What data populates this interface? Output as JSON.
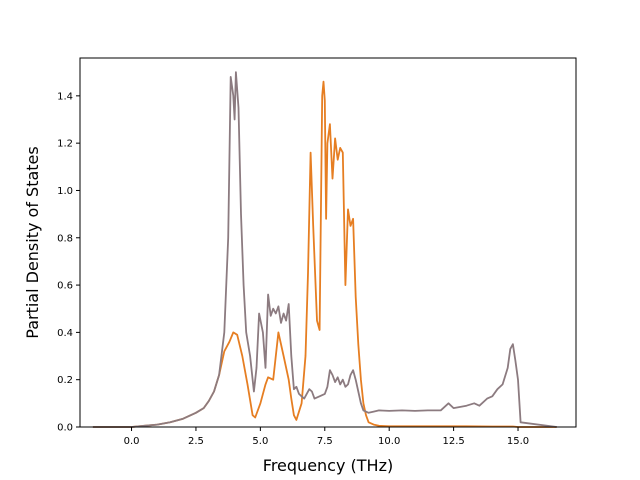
{
  "chart_data": {
    "type": "line",
    "title": "",
    "xlabel": "Frequency (THz)",
    "ylabel": "Partial Density of States",
    "xlim": [
      -2.0,
      17.25
    ],
    "ylim": [
      0.0,
      1.56
    ],
    "xticks": [
      0.0,
      2.5,
      5.0,
      7.5,
      10.0,
      12.5,
      15.0
    ],
    "xtick_labels": [
      "0.0",
      "2.5",
      "5.0",
      "7.5",
      "10.0",
      "12.5",
      "15.0"
    ],
    "yticks": [
      0.0,
      0.2,
      0.4,
      0.6,
      0.8,
      1.0,
      1.2,
      1.4
    ],
    "ytick_labels": [
      "0.0",
      "0.2",
      "0.4",
      "0.6",
      "0.8",
      "1.0",
      "1.2",
      "1.4"
    ],
    "grid": false,
    "legend": "none",
    "series": [
      {
        "color": "#e67e22",
        "x": [
          -1.5,
          0.0,
          0.5,
          1.0,
          1.5,
          2.0,
          2.5,
          2.8,
          3.0,
          3.2,
          3.4,
          3.6,
          3.8,
          3.95,
          4.1,
          4.3,
          4.5,
          4.7,
          4.8,
          5.0,
          5.2,
          5.3,
          5.5,
          5.7,
          5.9,
          6.1,
          6.2,
          6.3,
          6.4,
          6.6,
          6.75,
          6.85,
          6.95,
          7.05,
          7.2,
          7.3,
          7.4,
          7.45,
          7.5,
          7.55,
          7.6,
          7.7,
          7.8,
          7.9,
          8.0,
          8.1,
          8.2,
          8.3,
          8.4,
          8.5,
          8.6,
          8.7,
          8.8,
          8.9,
          9.0,
          9.1,
          9.2,
          9.4,
          9.6,
          10.0,
          11.0,
          12.0,
          13.0,
          14.0,
          14.8,
          15.0,
          16.0,
          16.5
        ],
        "y": [
          0.0,
          0.0,
          0.005,
          0.01,
          0.02,
          0.035,
          0.06,
          0.08,
          0.11,
          0.15,
          0.22,
          0.32,
          0.36,
          0.4,
          0.39,
          0.3,
          0.18,
          0.05,
          0.04,
          0.1,
          0.18,
          0.21,
          0.2,
          0.4,
          0.3,
          0.2,
          0.12,
          0.05,
          0.03,
          0.1,
          0.3,
          0.65,
          1.16,
          0.85,
          0.45,
          0.41,
          1.4,
          1.46,
          1.38,
          0.88,
          1.2,
          1.28,
          1.05,
          1.22,
          1.13,
          1.18,
          1.16,
          0.6,
          0.92,
          0.85,
          0.88,
          0.55,
          0.35,
          0.2,
          0.1,
          0.05,
          0.02,
          0.01,
          0.005,
          0.003,
          0.003,
          0.003,
          0.003,
          0.002,
          0.002,
          0.0,
          0.0,
          0.0
        ]
      },
      {
        "color": "#8c7b80",
        "x": [
          -1.5,
          0.0,
          0.5,
          1.0,
          1.5,
          2.0,
          2.5,
          2.8,
          3.0,
          3.2,
          3.4,
          3.6,
          3.75,
          3.85,
          3.95,
          4.0,
          4.05,
          4.15,
          4.25,
          4.35,
          4.45,
          4.6,
          4.75,
          4.85,
          4.95,
          5.1,
          5.2,
          5.3,
          5.4,
          5.5,
          5.6,
          5.7,
          5.8,
          5.9,
          6.0,
          6.1,
          6.2,
          6.3,
          6.4,
          6.5,
          6.6,
          6.7,
          6.8,
          6.9,
          7.0,
          7.1,
          7.3,
          7.5,
          7.6,
          7.7,
          7.8,
          7.9,
          8.0,
          8.1,
          8.2,
          8.3,
          8.4,
          8.5,
          8.6,
          8.7,
          8.8,
          8.9,
          9.0,
          9.2,
          9.4,
          9.6,
          10.0,
          10.5,
          11.0,
          11.5,
          12.0,
          12.3,
          12.5,
          13.0,
          13.3,
          13.5,
          13.8,
          14.0,
          14.2,
          14.4,
          14.6,
          14.7,
          14.8,
          14.9,
          15.0,
          15.1,
          16.5
        ],
        "y": [
          0.0,
          0.0,
          0.005,
          0.01,
          0.02,
          0.035,
          0.06,
          0.08,
          0.11,
          0.15,
          0.22,
          0.4,
          0.8,
          1.48,
          1.4,
          1.3,
          1.5,
          1.35,
          0.9,
          0.6,
          0.4,
          0.3,
          0.15,
          0.25,
          0.48,
          0.4,
          0.25,
          0.56,
          0.47,
          0.5,
          0.48,
          0.51,
          0.44,
          0.48,
          0.45,
          0.52,
          0.3,
          0.16,
          0.17,
          0.14,
          0.13,
          0.12,
          0.14,
          0.16,
          0.15,
          0.12,
          0.13,
          0.14,
          0.17,
          0.24,
          0.22,
          0.19,
          0.21,
          0.18,
          0.2,
          0.17,
          0.18,
          0.22,
          0.24,
          0.2,
          0.15,
          0.1,
          0.07,
          0.06,
          0.065,
          0.07,
          0.068,
          0.07,
          0.068,
          0.07,
          0.07,
          0.1,
          0.08,
          0.09,
          0.1,
          0.09,
          0.12,
          0.13,
          0.16,
          0.18,
          0.25,
          0.33,
          0.35,
          0.28,
          0.2,
          0.02,
          0.0
        ]
      }
    ]
  }
}
